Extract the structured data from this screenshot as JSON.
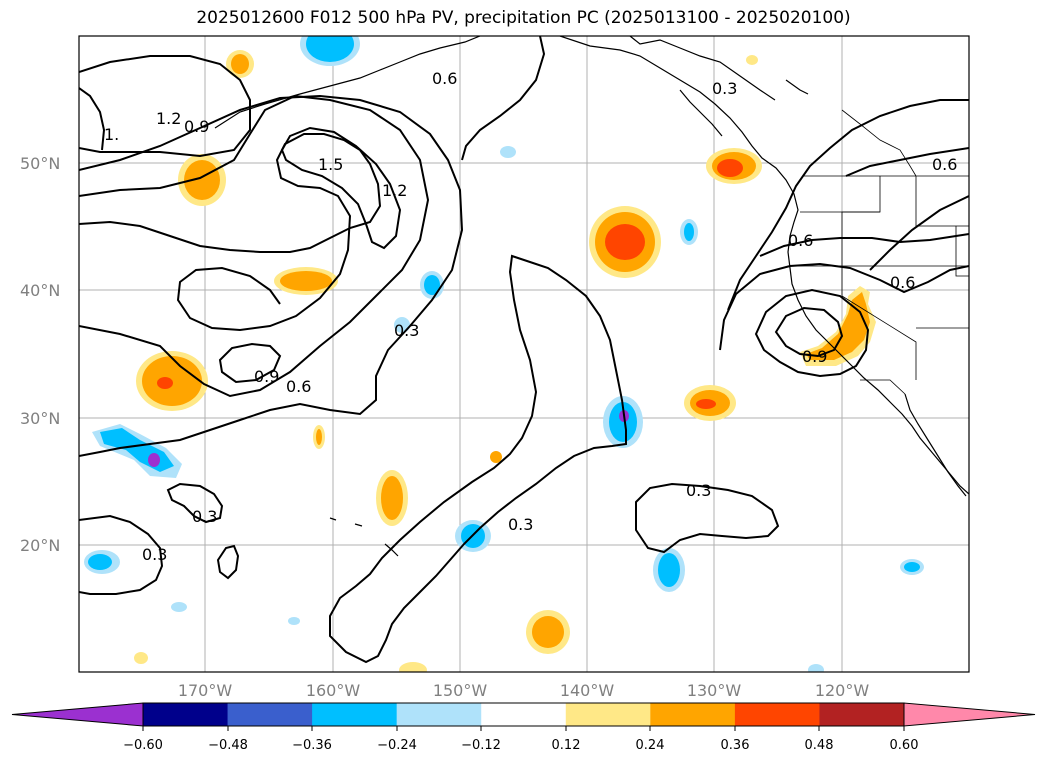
{
  "title": "2025012600 F012 500 hPa PV, precipitation PC (2025013100 - 2025020100)",
  "map": {
    "lat_labels": [
      "50°N",
      "40°N",
      "30°N",
      "20°N"
    ],
    "lon_labels": [
      "170°W",
      "160°W",
      "150°W",
      "140°W",
      "130°W",
      "120°W"
    ],
    "gridlines": true
  },
  "contours": {
    "variable": "500 hPa PV",
    "labels": [
      "1.5",
      "1.2",
      "1.2",
      "0.9",
      "1.",
      "0.6",
      "0.6",
      "0.9",
      "0.6",
      "0.3",
      "0.3",
      "0.3",
      "0.3",
      "0.3",
      "0.3",
      "0.9",
      "0.6",
      "0.6"
    ]
  },
  "colorbar": {
    "ticks": [
      "−0.60",
      "−0.48",
      "−0.36",
      "−0.24",
      "−0.12",
      "0.12",
      "0.24",
      "0.36",
      "0.48",
      "0.60"
    ],
    "colors": [
      "#9b30d0",
      "#00008b",
      "#3a5fcd",
      "#00bfff",
      "#afe2fa",
      "#ffffff",
      "#ffe887",
      "#ffa500",
      "#ff4500",
      "#b22222",
      "#ff88aa"
    ],
    "extend": "both"
  }
}
